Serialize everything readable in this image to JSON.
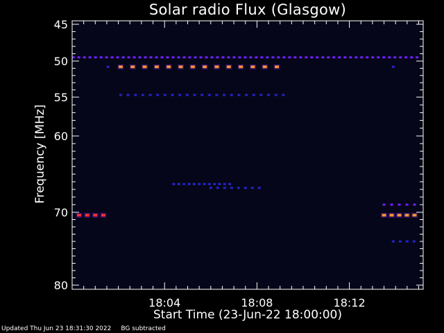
{
  "footer": {
    "updated": "Updated Thu Jun 23 18:31:30 2022",
    "note": "BG subtracted"
  },
  "chart_data": {
    "type": "heatmap",
    "title": "Solar radio Flux (Glasgow)",
    "xlabel": "Start Time (23-Jun-22 18:00:00)",
    "ylabel": "Frequency [MHz]",
    "x_range_minutes": [
      0,
      15.1
    ],
    "xticks": [
      {
        "minute": 4,
        "label": "18:04"
      },
      {
        "minute": 8,
        "label": "18:08"
      },
      {
        "minute": 12,
        "label": "18:12"
      }
    ],
    "yticks": [
      {
        "mhz": 45,
        "label": "45"
      },
      {
        "mhz": 50,
        "label": "50"
      },
      {
        "mhz": 55,
        "label": "55"
      },
      {
        "mhz": 60,
        "label": "60"
      },
      {
        "mhz": 70,
        "label": "70"
      },
      {
        "mhz": 80,
        "label": "80"
      }
    ],
    "ylim": [
      45,
      80
    ],
    "y_scale": "nonlinear (reciprocal-like), frequency increasing downward",
    "background_color": "#06061a",
    "colors": {
      "weak": "#2424c8",
      "medium": "#7020ff",
      "strong": "#ff3030",
      "peak": "#ff9040"
    },
    "features": [
      {
        "mhz": 49.5,
        "t_start": 0.05,
        "t_end": 15.05,
        "step": 0.24,
        "intensity": "medium",
        "desc": "persistent interference line"
      },
      {
        "mhz": 50.8,
        "t_start": 2.1,
        "t_end": 9.2,
        "step": 0.52,
        "intensity": "peak"
      },
      {
        "mhz": 50.8,
        "t_start": 1.55,
        "t_end": 1.55,
        "step": 1,
        "intensity": "weak"
      },
      {
        "mhz": 50.8,
        "t_start": 13.9,
        "t_end": 13.9,
        "step": 1,
        "intensity": "weak"
      },
      {
        "mhz": 54.7,
        "t_start": 2.1,
        "t_end": 9.2,
        "step": 0.32,
        "intensity": "weak"
      },
      {
        "mhz": 70.4,
        "t_start": 0.3,
        "t_end": 1.4,
        "step": 0.35,
        "intensity": "strong"
      },
      {
        "mhz": 70.4,
        "t_start": 13.5,
        "t_end": 15.0,
        "step": 0.33,
        "intensity": "peak"
      },
      {
        "mhz": 69.0,
        "t_start": 13.5,
        "t_end": 15.0,
        "step": 0.33,
        "intensity": "medium"
      },
      {
        "mhz": 66.3,
        "t_start": 4.4,
        "t_end": 7.0,
        "step": 0.22,
        "intensity": "weak"
      },
      {
        "mhz": 66.8,
        "t_start": 6.0,
        "t_end": 8.2,
        "step": 0.3,
        "intensity": "weak"
      },
      {
        "mhz": 74.0,
        "t_start": 13.9,
        "t_end": 15.0,
        "step": 0.3,
        "intensity": "weak"
      }
    ]
  }
}
